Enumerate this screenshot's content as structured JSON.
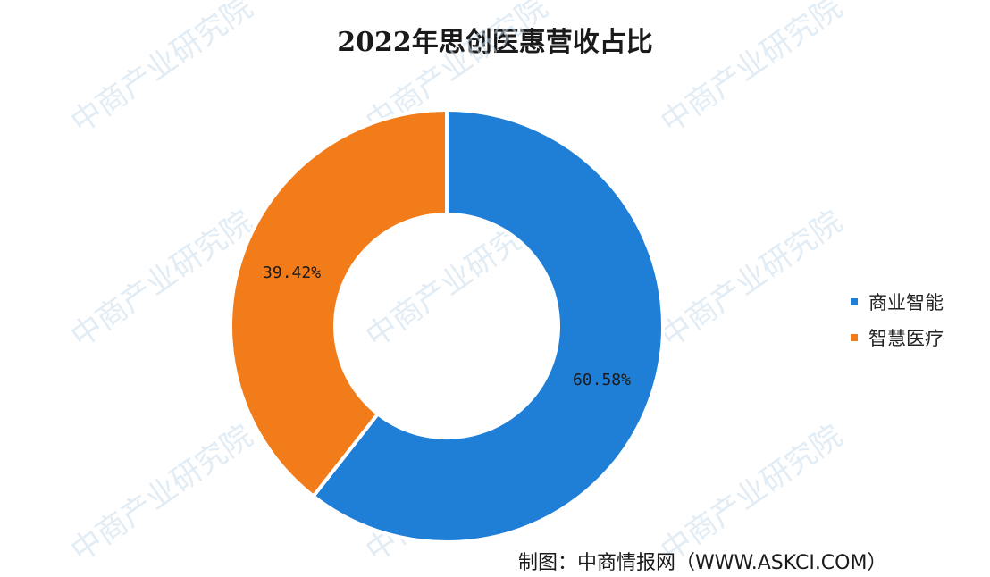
{
  "chart_data": {
    "type": "pie",
    "title": "2022年思创医惠营收占比",
    "donut": true,
    "slices": [
      {
        "label": "商业智能",
        "value": 60.58,
        "display": "60.58%",
        "color": "#1f7fd6"
      },
      {
        "label": "智慧医疗",
        "value": 39.42,
        "display": "39.42%",
        "color": "#f27b1a"
      }
    ],
    "legend_position": "right"
  },
  "source": "制图：中商情报网（WWW.ASKCI.COM）",
  "watermark": "中商产业研究院"
}
